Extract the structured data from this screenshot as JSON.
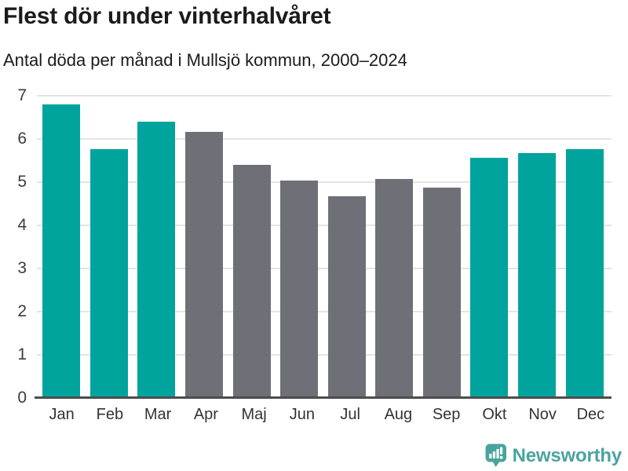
{
  "header": {
    "title": "Flest dör under vinterhalvåret",
    "subtitle": "Antal döda per månad i Mullsjö kommun, 2000–2024"
  },
  "chart_data": {
    "type": "bar",
    "title": "Flest dör under vinterhalvåret",
    "subtitle": "Antal döda per månad i Mullsjö kommun, 2000–2024",
    "categories": [
      "Jan",
      "Feb",
      "Mar",
      "Apr",
      "Maj",
      "Jun",
      "Jul",
      "Aug",
      "Sep",
      "Okt",
      "Nov",
      "Dec"
    ],
    "values": [
      6.8,
      5.76,
      6.4,
      6.16,
      5.4,
      5.04,
      4.68,
      5.08,
      4.88,
      5.56,
      5.68,
      5.76
    ],
    "bar_groups": [
      "winter",
      "winter",
      "winter",
      "summer",
      "summer",
      "summer",
      "summer",
      "summer",
      "summer",
      "winter",
      "winter",
      "winter"
    ],
    "xlabel": "",
    "ylabel": "",
    "ylim": [
      0,
      7
    ],
    "yticks": [
      0,
      1,
      2,
      3,
      4,
      5,
      6,
      7
    ],
    "grid": true,
    "legend": false,
    "colors": {
      "winter_bar": "#00a49c",
      "summer_bar": "#6f6f78",
      "gridline": "#e4e4e4",
      "axis_line": "#4d4d4d",
      "tick_text": "#3c3c3c"
    }
  },
  "footer": {
    "logo_text": "Newsworthy",
    "logo_icon": "newsworthy-speech-bubble-chart-icon",
    "logo_color": "#4aa49e"
  }
}
